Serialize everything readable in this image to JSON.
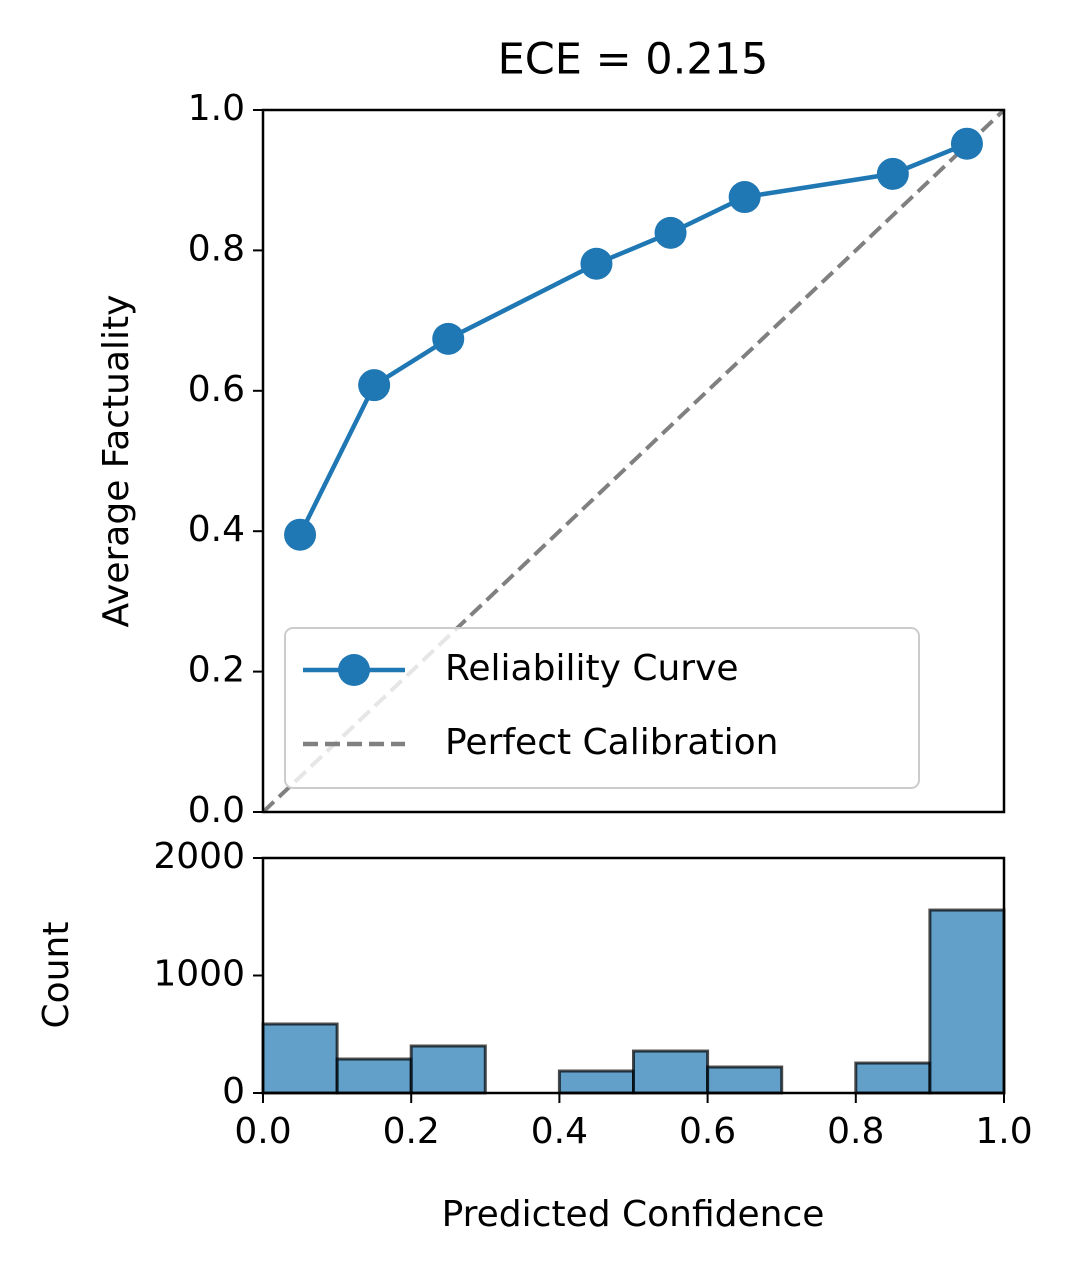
{
  "chart_data": [
    {
      "type": "line",
      "title": "ECE = 0.215",
      "ylabel": "Average Factuality",
      "xlim": [
        0,
        1
      ],
      "ylim": [
        0,
        1
      ],
      "yticks": [
        {
          "value": 0,
          "label": "0.0"
        },
        0.2,
        0.4,
        0.6,
        0.8,
        {
          "value": 1,
          "label": "1.0"
        }
      ],
      "legend": "lower right",
      "series": [
        {
          "name": "Reliability Curve",
          "color": "#1f77b4",
          "marker": "circle",
          "style": "solid",
          "x": [
            0.05,
            0.15,
            0.25,
            0.45,
            0.55,
            0.65,
            0.85,
            0.95
          ],
          "values": [
            0.395,
            0.608,
            0.674,
            0.781,
            0.825,
            0.876,
            0.909,
            0.952
          ]
        },
        {
          "name": "Perfect Calibration",
          "color": "#808080",
          "style": "dashed",
          "x": [
            0,
            1
          ],
          "values": [
            0,
            1
          ]
        }
      ]
    },
    {
      "type": "histogram",
      "xlabel": "Predicted Confidence",
      "ylabel": "Count",
      "color": "#1f77b4",
      "bins": [
        0,
        0.1,
        0.2,
        0.3,
        0.4,
        0.5,
        0.6,
        0.7,
        0.8,
        0.9,
        1
      ],
      "values": [
        587,
        289,
        400,
        0,
        187,
        357,
        221,
        0,
        255,
        1557
      ],
      "xlim": [
        0,
        1
      ],
      "ylim": [
        0,
        2000
      ],
      "xticks": [
        {
          "value": 0,
          "label": "0.0"
        },
        0.2,
        0.4,
        0.6,
        0.8,
        {
          "value": 1,
          "label": "1.0"
        }
      ],
      "yticks": [
        0,
        1000,
        2000
      ]
    }
  ]
}
